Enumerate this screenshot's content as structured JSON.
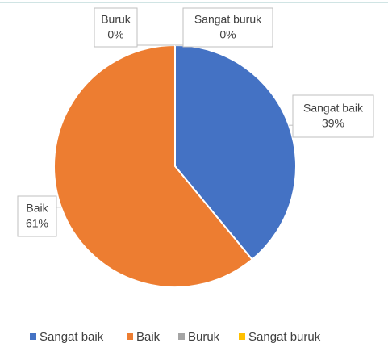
{
  "chart_data": {
    "type": "pie",
    "categories": [
      "Sangat baik",
      "Baik",
      "Buruk",
      "Sangat buruk"
    ],
    "values": [
      39,
      61,
      0,
      0
    ],
    "value_labels": [
      "39%",
      "61%",
      "0%",
      "0%"
    ],
    "colors": [
      "#4472c4",
      "#ed7d31",
      "#a5a5a5",
      "#ffc000"
    ],
    "legend": "bottom"
  }
}
